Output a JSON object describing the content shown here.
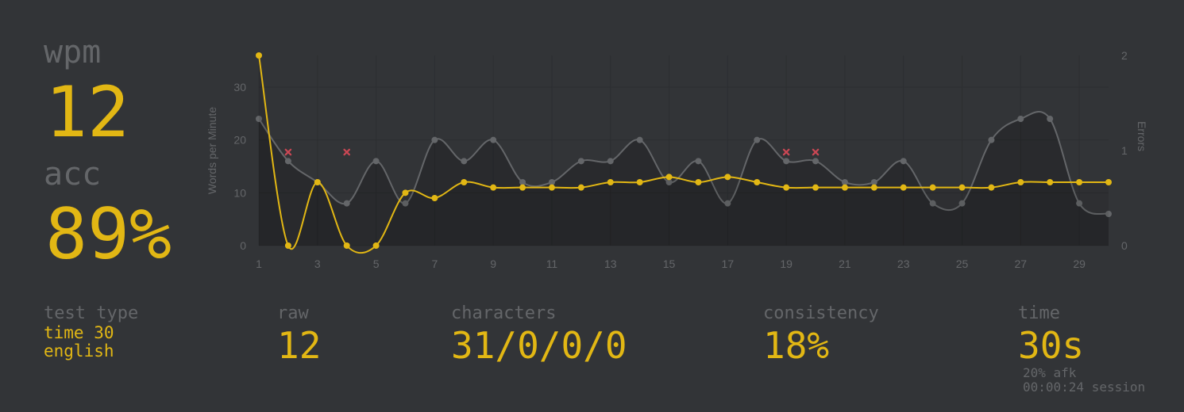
{
  "wpm": {
    "label": "wpm",
    "value": "12"
  },
  "acc": {
    "label": "acc",
    "value": "89%"
  },
  "stats": {
    "test_type": {
      "label": "test type",
      "mode": "time 30",
      "language": "english"
    },
    "raw": {
      "label": "raw",
      "value": "12"
    },
    "characters": {
      "label": "characters",
      "value": "31/0/0/0"
    },
    "consistency": {
      "label": "consistency",
      "value": "18%"
    },
    "time": {
      "label": "time",
      "value": "30s",
      "afk": "20% afk",
      "session": "00:00:24 session"
    }
  },
  "colors": {
    "background": "#323437",
    "main": "#e2b714",
    "sub": "#646669",
    "error": "#ca4754",
    "raw_line": "#646669"
  },
  "chart_data": {
    "type": "line",
    "x": [
      1,
      2,
      3,
      4,
      5,
      6,
      7,
      8,
      9,
      10,
      11,
      12,
      13,
      14,
      15,
      16,
      17,
      18,
      19,
      20,
      21,
      22,
      23,
      24,
      25,
      26,
      27,
      28,
      29,
      30
    ],
    "x_ticks": [
      "1",
      "3",
      "5",
      "7",
      "9",
      "11",
      "13",
      "15",
      "17",
      "19",
      "21",
      "23",
      "25",
      "27",
      "29"
    ],
    "ylabel": "Words per Minute",
    "y2label": "Errors",
    "ylim": [
      0,
      36
    ],
    "y_ticks": [
      "0",
      "10",
      "20",
      "30"
    ],
    "y2lim": [
      0,
      2
    ],
    "y2_ticks": [
      "0",
      "1",
      "2"
    ],
    "grid": true,
    "series": [
      {
        "values": [
          36,
          0,
          12,
          0,
          0,
          10,
          9,
          12,
          11,
          11,
          11,
          11,
          12,
          12,
          13,
          12,
          13,
          12,
          11,
          11,
          11,
          11,
          11,
          11,
          11,
          11,
          12,
          12,
          12,
          12
        ],
        "color": "#e2b714"
      },
      {
        "values": [
          24,
          16,
          12,
          8,
          16,
          8,
          20,
          16,
          20,
          12,
          12,
          16,
          16,
          20,
          12,
          16,
          8,
          20,
          16,
          16,
          12,
          12,
          16,
          8,
          8,
          20,
          24,
          24,
          8,
          6
        ],
        "color": "#646669"
      },
      {
        "type": "scatter",
        "marker": "x",
        "color": "#ca4754",
        "x": [
          2,
          4,
          19,
          20
        ],
        "values": [
          1,
          1,
          1,
          1
        ]
      }
    ]
  }
}
